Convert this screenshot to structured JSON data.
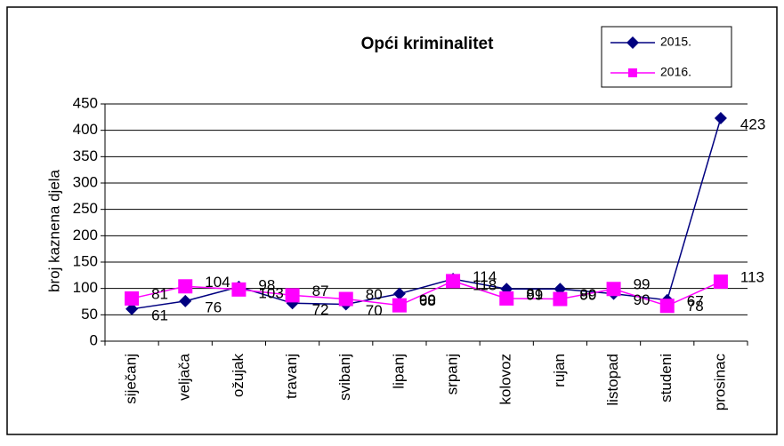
{
  "chart_data": {
    "type": "line",
    "title": "Opći kriminalitet",
    "y_label": "broj kaznena djela",
    "categories": [
      "siječanj",
      "veljača",
      "ožujak",
      "travanj",
      "svibanj",
      "lipanj",
      "srpanj",
      "kolovoz",
      "rujan",
      "listopad",
      "studeni",
      "prosinac"
    ],
    "series": [
      {
        "name": "2015.",
        "color": "#000080",
        "marker": "diamond",
        "values": [
          61,
          76,
          103,
          72,
          70,
          90,
          118,
          99,
          99,
          90,
          78,
          423
        ]
      },
      {
        "name": "2016.",
        "color": "#ff00ff",
        "marker": "square",
        "values": [
          81,
          104,
          98,
          87,
          80,
          68,
          114,
          81,
          80,
          99,
          67,
          113
        ]
      }
    ],
    "ylim": [
      0,
      450
    ],
    "yticks": [
      0,
      50,
      100,
      150,
      200,
      250,
      300,
      350,
      400,
      450
    ],
    "grid": true,
    "legend": "top-right"
  }
}
